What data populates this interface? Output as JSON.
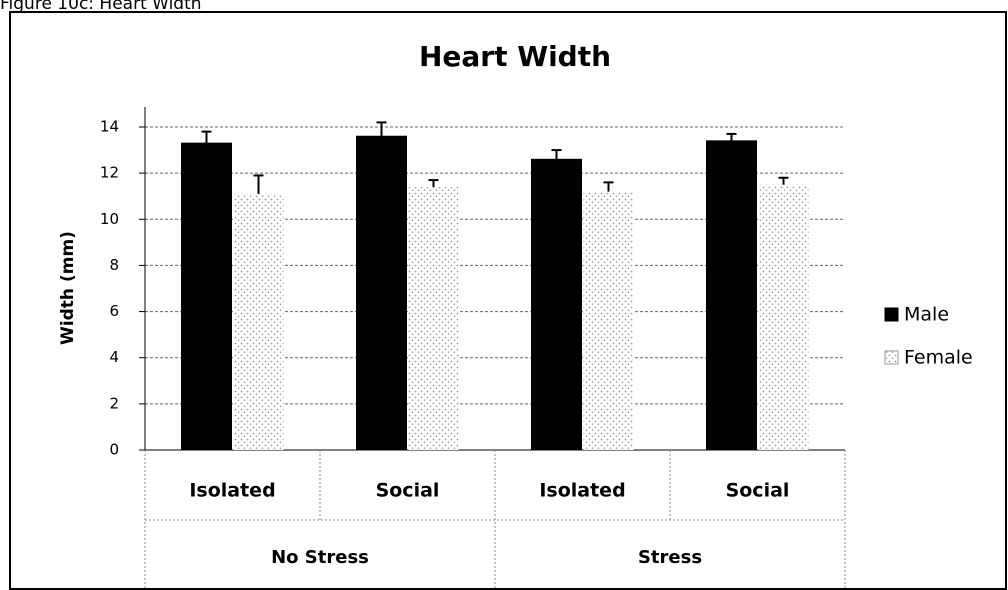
{
  "caption": "Figure 10c: Heart Width",
  "chart_data": {
    "type": "bar",
    "title": "Heart Width",
    "y_label": "Width (mm)",
    "categories": [
      "Isolated",
      "Social",
      "Isolated",
      "Social"
    ],
    "groups": [
      "No Stress",
      "Stress"
    ],
    "series": [
      {
        "name": "Male",
        "color": "#000000",
        "values": [
          13.3,
          13.6,
          12.6,
          13.4
        ],
        "errors": [
          0.5,
          0.6,
          0.4,
          0.3
        ]
      },
      {
        "name": "Female",
        "color": "#9a9a9a",
        "pattern": "dots",
        "values": [
          11.1,
          11.4,
          11.2,
          11.5
        ],
        "errors": [
          0.8,
          0.3,
          0.4,
          0.3
        ]
      }
    ],
    "ylim": [
      0,
      14
    ],
    "yticks": [
      0,
      2,
      4,
      6,
      8,
      10,
      12,
      14
    ],
    "grid": true,
    "legend": "right"
  }
}
